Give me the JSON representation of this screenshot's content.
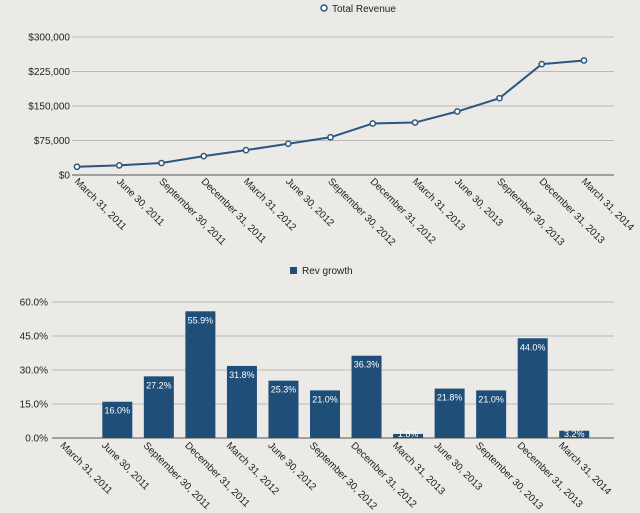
{
  "colors": {
    "background": "#ebeae7",
    "series": "#1f4e79",
    "line": "#2b5680",
    "grid": "#b9b9b9",
    "axis": "#555555"
  },
  "chart_data": [
    {
      "type": "line",
      "legend": "Total Revenue",
      "legend_position": "top-center",
      "categories": [
        "March 31, 2011",
        "June 30, 2011",
        "September 30, 2011",
        "December 31, 2011",
        "March 31, 2012",
        "June 30, 2012",
        "September 30, 2012",
        "December 31, 2012",
        "March 31, 2013",
        "June 30, 2013",
        "September 30, 2013",
        "December 31, 2013",
        "March 31, 2014"
      ],
      "series": [
        {
          "name": "Total Revenue",
          "values": [
            18000,
            21000,
            26000,
            41000,
            54000,
            68000,
            82000,
            112000,
            114000,
            138000,
            167000,
            241000,
            249000
          ]
        }
      ],
      "yticks": [
        "$0",
        "$75,000",
        "$150,000",
        "$225,000",
        "$300,000"
      ],
      "ylim": [
        0,
        300000
      ],
      "grid": true
    },
    {
      "type": "bar",
      "legend": "Rev growth",
      "legend_position": "top-center",
      "categories": [
        "March 31, 2011",
        "June 30, 2011",
        "September 30, 2011",
        "December 31, 2011",
        "March 31, 2012",
        "June 30, 2012",
        "September 30, 2012",
        "December 31, 2012",
        "March 31, 2013",
        "June 30, 2013",
        "September 30, 2013",
        "December 31, 2013",
        "March 31, 2014"
      ],
      "series": [
        {
          "name": "Rev growth",
          "values": [
            null,
            16.0,
            27.2,
            55.9,
            31.8,
            25.3,
            21.0,
            36.3,
            1.8,
            21.8,
            21.0,
            44.0,
            3.2
          ]
        }
      ],
      "data_labels": [
        "",
        "16.0%",
        "27.2%",
        "55.9%",
        "31.8%",
        "25.3%",
        "21.0%",
        "36.3%",
        "1.8%",
        "21.8%",
        "21.0%",
        "44.0%",
        "3.2%"
      ],
      "yticks": [
        "0.0%",
        "15.0%",
        "30.0%",
        "45.0%",
        "60.0%"
      ],
      "ylim": [
        0,
        60
      ],
      "grid": true
    }
  ]
}
